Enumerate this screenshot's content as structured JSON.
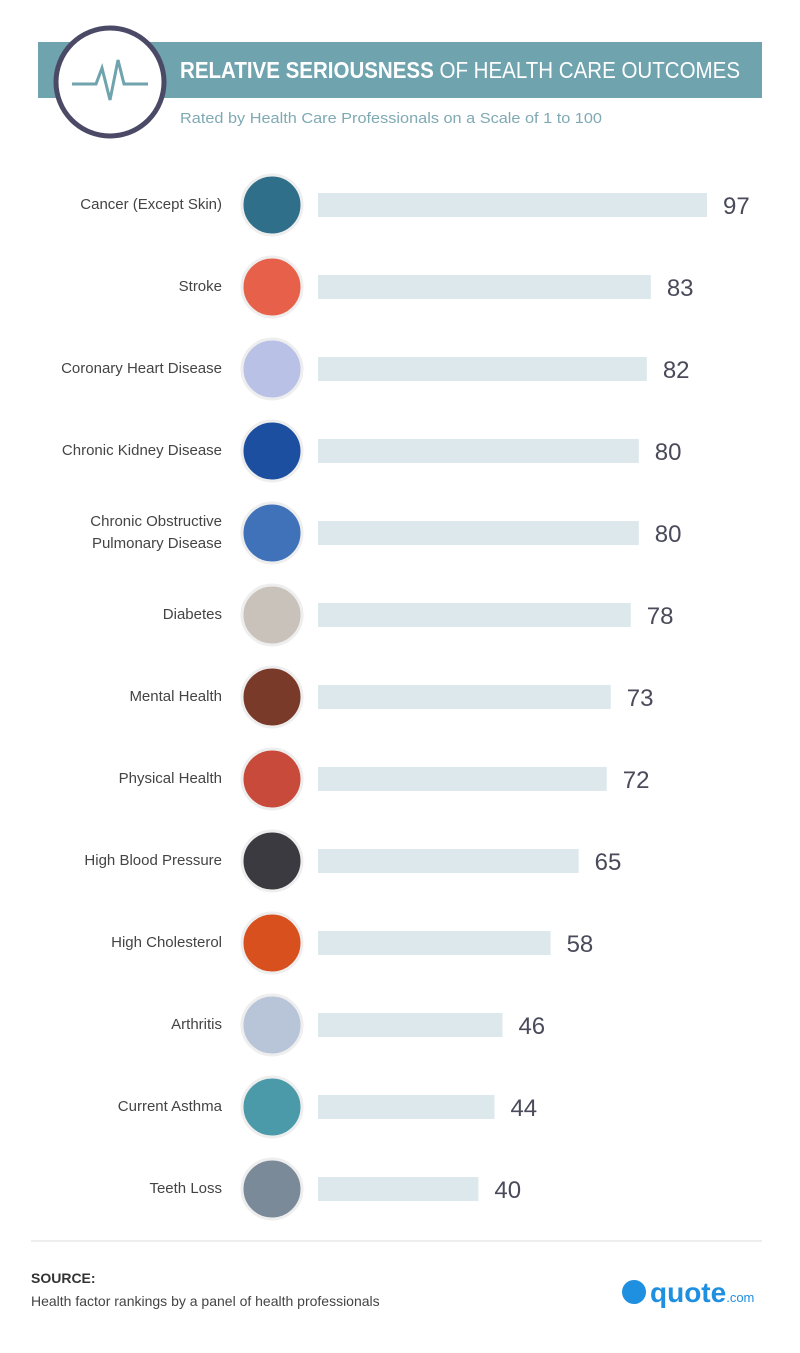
{
  "chart_data": {
    "type": "bar",
    "title": [
      "RELATIVE SERIOUSNESS",
      "OF HEALTH CARE OUTCOMES"
    ],
    "subtitle": "Rated by Health Care Professionals on a Scale of 1 to 100",
    "categories": [
      "Cancer (Except Skin)",
      "Stroke",
      "Coronary Heart Disease",
      "Chronic Kidney Disease",
      "Chronic Obstructive\nPulmonary Disease",
      "Diabetes",
      "Mental Health",
      "Physical Health",
      "High Blood Pressure",
      "High Cholesterol",
      "Arthritis",
      "Current Asthma",
      "Teeth Loss"
    ],
    "values": [
      97,
      83,
      82,
      80,
      80,
      78,
      73,
      72,
      65,
      58,
      46,
      44,
      40
    ],
    "color": "#dde8ec",
    "xlim": [
      0,
      100
    ],
    "source_label": "SOURCE:",
    "source": "Health factor rankings by a panel of health professionals",
    "logo": [
      "quote",
      ".com"
    ]
  }
}
